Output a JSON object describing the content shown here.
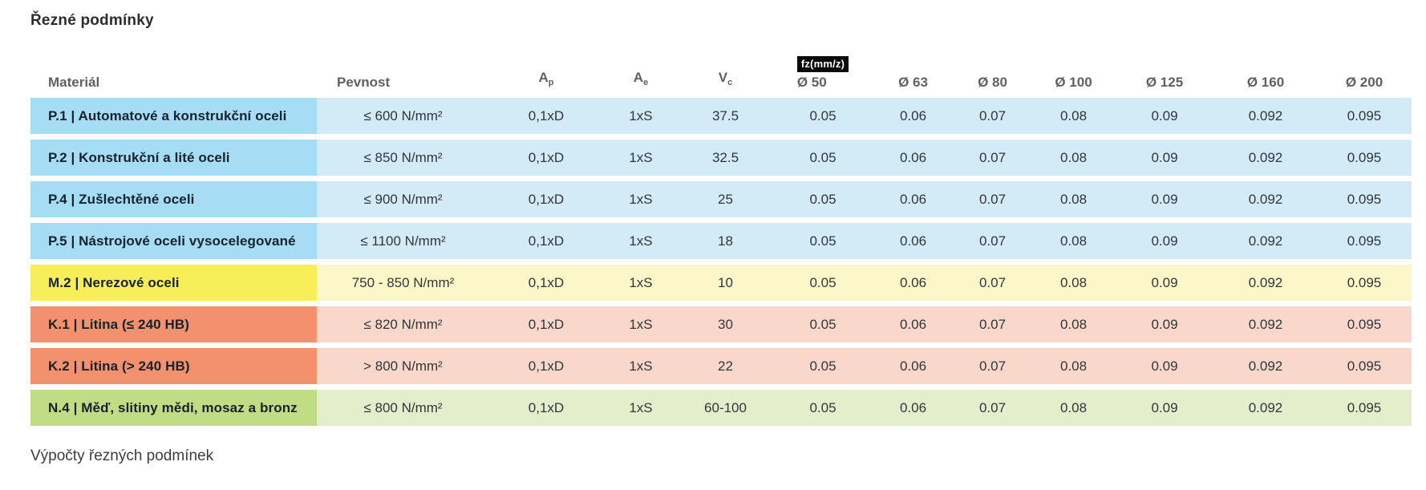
{
  "page": {
    "title": "Řezné podmínky",
    "section_footer": "Výpočty řezných podmínek"
  },
  "colors": {
    "badge_bg": "#0a0a0a",
    "badge_text": "#ffffff",
    "steel_label": "#a6ddf4",
    "steel_row": "#d3eaf7",
    "stainless_label": "#f8ee58",
    "stainless_row": "#fbf7c8",
    "cast_iron_label": "#f3916f",
    "cast_iron_row": "#f9d8cb",
    "nonferrous_label": "#c0dc85",
    "nonferrous_row": "#e5eecb"
  },
  "table": {
    "headers": {
      "material": "Materiál",
      "pevnost": "Pevnost",
      "ap": {
        "base": "A",
        "sub": "p"
      },
      "ae": {
        "base": "A",
        "sub": "e"
      },
      "vc": {
        "base": "V",
        "sub": "c"
      },
      "fz_badge": "fz(mm/z)",
      "diameters": [
        "Ø 50",
        "Ø 63",
        "Ø 80",
        "Ø 100",
        "Ø 125",
        "Ø 160",
        "Ø 200"
      ]
    },
    "rows": [
      {
        "material": "P.1 | Automatové a konstrukční oceli",
        "pevnost": "≤ 600 N/mm²",
        "ap": "0,1xD",
        "ae": "1xS",
        "vc": "37.5",
        "fz": [
          "0.05",
          "0.06",
          "0.07",
          "0.08",
          "0.09",
          "0.092",
          "0.095"
        ],
        "label_color": "#a6ddf4",
        "row_color": "#d3eaf7"
      },
      {
        "material": "P.2 | Konstrukční a lité oceli",
        "pevnost": "≤ 850 N/mm²",
        "ap": "0,1xD",
        "ae": "1xS",
        "vc": "32.5",
        "fz": [
          "0.05",
          "0.06",
          "0.07",
          "0.08",
          "0.09",
          "0.092",
          "0.095"
        ],
        "label_color": "#a6ddf4",
        "row_color": "#d3eaf7"
      },
      {
        "material": "P.4 | Zušlechtěné oceli",
        "pevnost": "≤ 900 N/mm²",
        "ap": "0,1xD",
        "ae": "1xS",
        "vc": "25",
        "fz": [
          "0.05",
          "0.06",
          "0.07",
          "0.08",
          "0.09",
          "0.092",
          "0.095"
        ],
        "label_color": "#a6ddf4",
        "row_color": "#d3eaf7"
      },
      {
        "material": "P.5 | Nástrojové oceli vysocelegované",
        "pevnost": "≤ 1100 N/mm²",
        "ap": "0,1xD",
        "ae": "1xS",
        "vc": "18",
        "fz": [
          "0.05",
          "0.06",
          "0.07",
          "0.08",
          "0.09",
          "0.092",
          "0.095"
        ],
        "label_color": "#a6ddf4",
        "row_color": "#d3eaf7"
      },
      {
        "material": "M.2 | Nerezové oceli",
        "pevnost": "750 - 850 N/mm²",
        "ap": "0,1xD",
        "ae": "1xS",
        "vc": "10",
        "fz": [
          "0.05",
          "0.06",
          "0.07",
          "0.08",
          "0.09",
          "0.092",
          "0.095"
        ],
        "label_color": "#f8ee58",
        "row_color": "#fbf7c8"
      },
      {
        "material": "K.1 | Litina (≤ 240 HB)",
        "pevnost": "≤ 820 N/mm²",
        "ap": "0,1xD",
        "ae": "1xS",
        "vc": "30",
        "fz": [
          "0.05",
          "0.06",
          "0.07",
          "0.08",
          "0.09",
          "0.092",
          "0.095"
        ],
        "label_color": "#f3916f",
        "row_color": "#f9d8cb"
      },
      {
        "material": "K.2 | Litina (> 240 HB)",
        "pevnost": "> 800 N/mm²",
        "ap": "0,1xD",
        "ae": "1xS",
        "vc": "22",
        "fz": [
          "0.05",
          "0.06",
          "0.07",
          "0.08",
          "0.09",
          "0.092",
          "0.095"
        ],
        "label_color": "#f3916f",
        "row_color": "#f9d8cb"
      },
      {
        "material": "N.4 | Měď, slitiny mědi, mosaz a bronz",
        "pevnost": "≤ 800 N/mm²",
        "ap": "0,1xD",
        "ae": "1xS",
        "vc": "60-100",
        "fz": [
          "0.05",
          "0.06",
          "0.07",
          "0.08",
          "0.09",
          "0.092",
          "0.095"
        ],
        "label_color": "#c0dc85",
        "row_color": "#e5eecb"
      }
    ]
  }
}
